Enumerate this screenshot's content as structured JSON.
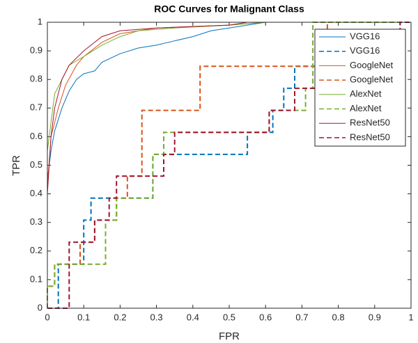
{
  "chart_data": {
    "type": "line",
    "title": "ROC Curves for Malignant Class",
    "x_label": "FPR",
    "y_label": "TPR",
    "xlim": [
      0,
      1
    ],
    "ylim": [
      0,
      1
    ],
    "xticks": [
      0,
      0.1,
      0.2,
      0.3,
      0.4,
      0.5,
      0.6,
      0.7,
      0.8,
      0.9,
      1
    ],
    "yticks": [
      0,
      0.1,
      0.2,
      0.3,
      0.4,
      0.5,
      0.6,
      0.7,
      0.8,
      0.9,
      1
    ],
    "legend": "upper right",
    "series": [
      {
        "name": "VGG16",
        "color": "#0072bd",
        "style": "solid",
        "x": [
          0,
          0,
          0.01,
          0.02,
          0.04,
          0.06,
          0.08,
          0.1,
          0.13,
          0.15,
          0.2,
          0.25,
          0.3,
          0.35,
          0.4,
          0.45,
          0.5,
          0.55,
          0.6,
          1
        ],
        "values": [
          0,
          0.45,
          0.55,
          0.62,
          0.7,
          0.76,
          0.8,
          0.82,
          0.83,
          0.86,
          0.89,
          0.91,
          0.92,
          0.935,
          0.95,
          0.97,
          0.98,
          0.99,
          1,
          1
        ]
      },
      {
        "name": "VGG16",
        "color": "#0072bd",
        "style": "dashed",
        "x": [
          0,
          0.03,
          0.03,
          0.1,
          0.1,
          0.12,
          0.12,
          0.29,
          0.29,
          0.55,
          0.55,
          0.62,
          0.62,
          0.65,
          0.65,
          0.68,
          0.68,
          0.97,
          0.97,
          1
        ],
        "values": [
          0,
          0,
          0.154,
          0.154,
          0.308,
          0.308,
          0.385,
          0.385,
          0.538,
          0.538,
          0.615,
          0.615,
          0.692,
          0.692,
          0.769,
          0.769,
          0.846,
          0.846,
          1,
          1
        ]
      },
      {
        "name": "GoogleNet",
        "color": "#d95319",
        "style": "solid",
        "x": [
          0,
          0,
          0.01,
          0.03,
          0.05,
          0.08,
          0.1,
          0.15,
          0.2,
          0.3,
          0.5,
          0.6,
          1
        ],
        "values": [
          0,
          0.42,
          0.6,
          0.7,
          0.78,
          0.85,
          0.88,
          0.93,
          0.96,
          0.98,
          0.99,
          1,
          1
        ]
      },
      {
        "name": "GoogleNet",
        "color": "#d95319",
        "style": "dashed",
        "x": [
          0,
          0,
          0.02,
          0.02,
          0.09,
          0.09,
          0.13,
          0.13,
          0.19,
          0.19,
          0.22,
          0.22,
          0.26,
          0.26,
          0.42,
          0.42,
          0.77,
          0.77,
          1
        ],
        "values": [
          0,
          0.077,
          0.077,
          0.154,
          0.154,
          0.231,
          0.231,
          0.308,
          0.308,
          0.385,
          0.385,
          0.462,
          0.462,
          0.692,
          0.692,
          0.846,
          0.846,
          1,
          1
        ]
      },
      {
        "name": "AlexNet",
        "color": "#77ac30",
        "style": "solid",
        "x": [
          0,
          0,
          0.01,
          0.02,
          0.04,
          0.06,
          0.1,
          0.15,
          0.2,
          0.25,
          0.35,
          0.5,
          0.6,
          1
        ],
        "values": [
          0,
          0.55,
          0.65,
          0.75,
          0.8,
          0.85,
          0.88,
          0.92,
          0.95,
          0.97,
          0.98,
          0.99,
          1,
          1
        ]
      },
      {
        "name": "AlexNet",
        "color": "#77ac30",
        "style": "dashed",
        "x": [
          0,
          0,
          0.02,
          0.02,
          0.16,
          0.16,
          0.19,
          0.19,
          0.29,
          0.29,
          0.32,
          0.32,
          0.61,
          0.61,
          0.71,
          0.71,
          0.73,
          0.73,
          1
        ],
        "values": [
          0,
          0.077,
          0.077,
          0.154,
          0.154,
          0.308,
          0.308,
          0.385,
          0.385,
          0.538,
          0.538,
          0.615,
          0.615,
          0.692,
          0.692,
          0.769,
          0.769,
          1,
          1
        ]
      },
      {
        "name": "ResNet50",
        "color": "#a2142f",
        "style": "solid",
        "x": [
          0,
          0,
          0.01,
          0.02,
          0.04,
          0.06,
          0.1,
          0.15,
          0.2,
          0.3,
          0.5,
          0.55,
          1
        ],
        "values": [
          0,
          0.4,
          0.6,
          0.7,
          0.8,
          0.85,
          0.9,
          0.95,
          0.97,
          0.98,
          0.99,
          1,
          1
        ]
      },
      {
        "name": "ResNet50",
        "color": "#a2142f",
        "style": "dashed",
        "x": [
          0,
          0.06,
          0.06,
          0.13,
          0.13,
          0.17,
          0.17,
          0.19,
          0.19,
          0.32,
          0.32,
          0.35,
          0.35,
          0.61,
          0.61,
          0.68,
          0.68,
          0.97,
          0.97,
          1
        ],
        "values": [
          0,
          0,
          0.231,
          0.231,
          0.308,
          0.308,
          0.385,
          0.385,
          0.462,
          0.462,
          0.538,
          0.538,
          0.615,
          0.615,
          0.692,
          0.692,
          0.769,
          0.769,
          1,
          1
        ]
      }
    ]
  }
}
